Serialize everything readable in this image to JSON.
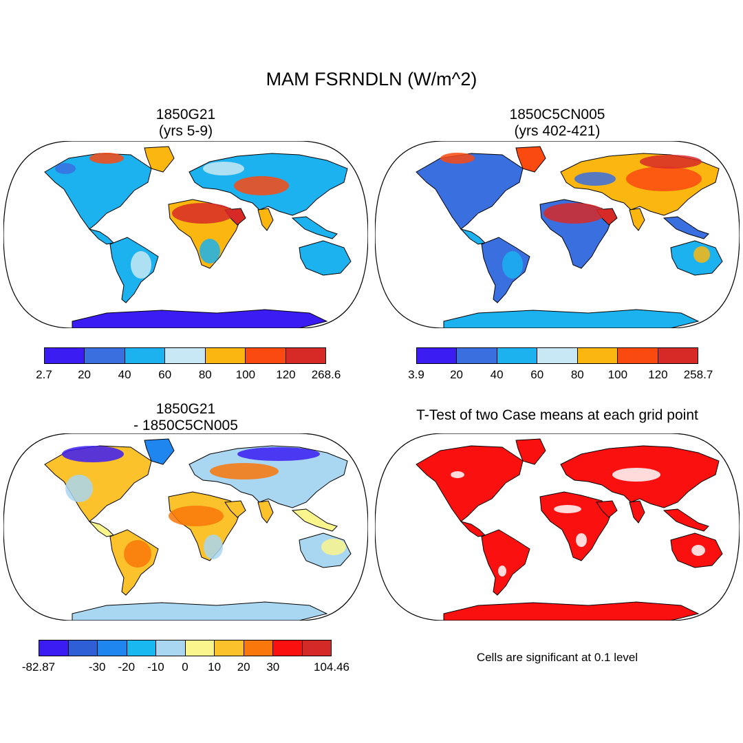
{
  "title": "MAM FSRNDLN (W/m^2)",
  "panels": {
    "p1": {
      "title1": "1850G21",
      "title2": "(yrs 5-9)"
    },
    "p2": {
      "title1": "1850C5CN005",
      "title2": "(yrs 402-421)"
    },
    "p3": {
      "title1": "1850G21",
      "title2": "- 1850C5CN005"
    },
    "p4": {
      "title1": "T-Test of two Case means at each grid point"
    }
  },
  "colorbars": {
    "cb1": {
      "labels": [
        "2.7",
        "20",
        "40",
        "60",
        "80",
        "100",
        "120",
        "268.6"
      ],
      "colors": [
        "#3b1cf2",
        "#3a6fe0",
        "#1bb2ef",
        "#c8e8f5",
        "#fbb70f",
        "#fa4a10",
        "#d72a27"
      ]
    },
    "cb2": {
      "labels": [
        "3.9",
        "20",
        "40",
        "60",
        "80",
        "100",
        "120",
        "258.7"
      ],
      "colors": [
        "#3b1cf2",
        "#3a6fe0",
        "#1bb2ef",
        "#c8e8f5",
        "#fbb70f",
        "#fa4a10",
        "#d72a27"
      ]
    },
    "cb3": {
      "labels": [
        "-82.87",
        "-30",
        "-20",
        "-10",
        "0",
        "10",
        "20",
        "30",
        "104.46"
      ],
      "colors": [
        "#3b1cf2",
        "#2f5fd6",
        "#1e86ee",
        "#19b8f0",
        "#a9d6f1",
        "#fbf58d",
        "#fbc22b",
        "#f9770b",
        "#fb1010",
        "#d42a27"
      ]
    }
  },
  "note": "Cells are significant at 0.1 level"
}
